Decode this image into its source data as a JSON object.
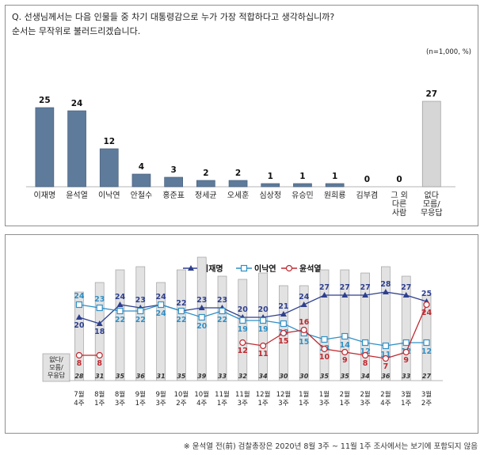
{
  "question": {
    "line1": "Q. 선생님께서는 다음 인물들 중 차기 대통령감으로 누가 가장 적합하다고 생각하십니까?",
    "line2": "순서는 무작위로 불러드리겠습니다."
  },
  "unit_note": "(n=1,000,  %)",
  "footnote": "※ 윤석열 전(前) 검찰총장은 2020년 8월 3주 ~ 11월 1주 조사에서는 보기에 포함되지 않음",
  "colors": {
    "bar_candidate": "#5f7b9b",
    "bar_undecided": "#d6d6d6",
    "lee_jm": "#2e3f8f",
    "lee_ny": "#2f8fc6",
    "yoon": "#c0282f"
  },
  "chart_data": [
    {
      "type": "bar",
      "categories": [
        "이재명",
        "윤석열",
        "이낙연",
        "안철수",
        "홍준표",
        "정세균",
        "오세훈",
        "심상정",
        "유승민",
        "원희룡",
        "김부겸",
        "그 외\n다른\n사람",
        "없다\n모름/\n무응답"
      ],
      "values": [
        25,
        24,
        12,
        4,
        3,
        2,
        2,
        1,
        1,
        1,
        0,
        0,
        27
      ],
      "ylim": [
        0,
        30
      ]
    },
    {
      "type": "line",
      "x": [
        "7월\n4주",
        "8월\n1주",
        "8월\n3주",
        "9월\n1주",
        "9월\n3주",
        "10월\n2주",
        "10월\n4주",
        "11월\n1주",
        "11월\n3주",
        "12월\n1주",
        "12월\n3주",
        "1월\n1주",
        "1월\n3주",
        "2월\n1주",
        "2월\n3주",
        "2월\n4주",
        "3월\n1주",
        "3월\n2주"
      ],
      "ylim": [
        0,
        30
      ],
      "legend_position": "top-center",
      "series": [
        {
          "name": "이재명",
          "values": [
            20,
            18,
            24,
            23,
            24,
            22,
            23,
            23,
            20,
            20,
            21,
            24,
            27,
            27,
            27,
            28,
            27,
            25
          ]
        },
        {
          "name": "이낙연",
          "values": [
            24,
            23,
            22,
            22,
            24,
            22,
            20,
            22,
            19,
            19,
            18,
            15,
            13,
            14,
            12,
            11,
            12,
            12
          ]
        },
        {
          "name": "윤석열",
          "values": [
            8,
            8,
            null,
            null,
            null,
            null,
            null,
            null,
            12,
            11,
            15,
            16,
            10,
            9,
            8,
            7,
            9,
            24
          ]
        }
      ],
      "undecided": {
        "label": "없다/\n모름/\n무응답",
        "values": [
          28,
          31,
          35,
          36,
          31,
          35,
          39,
          33,
          32,
          34,
          30,
          30,
          35,
          35,
          34,
          36,
          33,
          27
        ]
      }
    }
  ]
}
